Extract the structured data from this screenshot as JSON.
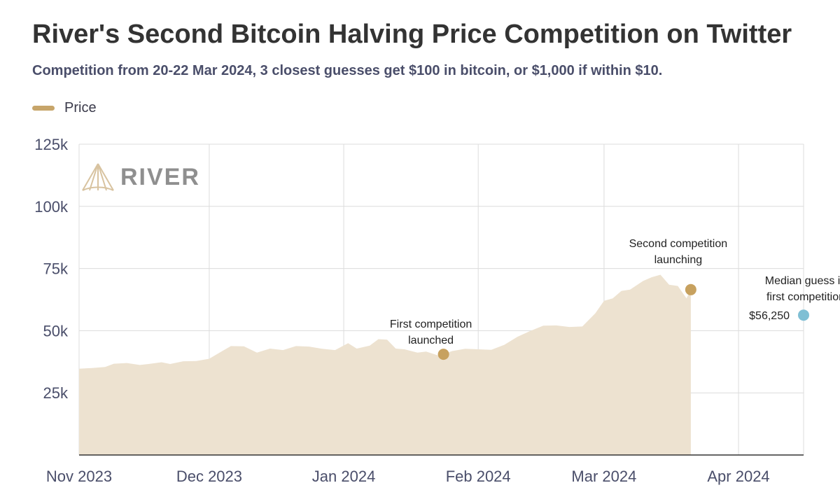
{
  "header": {
    "title": "River's Second Bitcoin Halving Price Competition on Twitter",
    "subtitle": "Competition from 20-22 Mar 2024, 3 closest guesses get $100 in bitcoin, or $1,000 if within $10."
  },
  "logo": {
    "text": "RIVER",
    "icon": "river-mountain-logo-icon"
  },
  "colors": {
    "price_fill": "#ede2d0",
    "price_line": "#c7a56a",
    "marker": "#c7a15f",
    "median_marker": "#7fbfd4",
    "grid": "#dcdcdc",
    "axis": "#333333"
  },
  "chart_data": {
    "type": "area",
    "title": "River's Second Bitcoin Halving Price Competition on Twitter",
    "subtitle": "Competition from 20-22 Mar 2024, 3 closest guesses get $100 in bitcoin, or $1,000 if within $10.",
    "xlabel": "",
    "ylabel": "",
    "xlim": [
      "2023-11-01",
      "2024-04-16"
    ],
    "ylim": [
      0,
      125000
    ],
    "x_ticks": [
      "2023-11-01",
      "2023-12-01",
      "2024-01-01",
      "2024-02-01",
      "2024-03-01",
      "2024-04-01"
    ],
    "x_tick_labels": [
      "Nov 2023",
      "Dec 2023",
      "Jan 2024",
      "Feb 2024",
      "Mar 2024",
      "Apr 2024"
    ],
    "y_ticks": [
      25000,
      50000,
      75000,
      100000,
      125000
    ],
    "y_tick_labels": [
      "25k",
      "50k",
      "75k",
      "100k",
      "125k"
    ],
    "grid": true,
    "legend_position": "top-left",
    "series": [
      {
        "name": "Price",
        "x": [
          "2023-11-01",
          "2023-11-04",
          "2023-11-07",
          "2023-11-09",
          "2023-11-12",
          "2023-11-15",
          "2023-11-17",
          "2023-11-20",
          "2023-11-22",
          "2023-11-25",
          "2023-11-28",
          "2023-12-01",
          "2023-12-04",
          "2023-12-06",
          "2023-12-09",
          "2023-12-12",
          "2023-12-15",
          "2023-12-18",
          "2023-12-21",
          "2023-12-24",
          "2023-12-27",
          "2023-12-30",
          "2024-01-02",
          "2024-01-04",
          "2024-01-07",
          "2024-01-09",
          "2024-01-11",
          "2024-01-13",
          "2024-01-15",
          "2024-01-18",
          "2024-01-20",
          "2024-01-23",
          "2024-01-26",
          "2024-01-29",
          "2024-02-01",
          "2024-02-04",
          "2024-02-07",
          "2024-02-10",
          "2024-02-13",
          "2024-02-16",
          "2024-02-19",
          "2024-02-22",
          "2024-02-25",
          "2024-02-28",
          "2024-03-01",
          "2024-03-03",
          "2024-03-05",
          "2024-03-07",
          "2024-03-10",
          "2024-03-12",
          "2024-03-14",
          "2024-03-16",
          "2024-03-18",
          "2024-03-20",
          "2024-03-21"
        ],
        "values": [
          34700,
          35000,
          35400,
          36700,
          37000,
          36200,
          36600,
          37300,
          36600,
          37700,
          37800,
          38700,
          41800,
          43800,
          43700,
          41200,
          42800,
          42200,
          43800,
          43600,
          42700,
          42200,
          45000,
          42800,
          44000,
          46600,
          46400,
          42800,
          42500,
          41200,
          41600,
          39900,
          41800,
          42700,
          42500,
          42300,
          44300,
          47500,
          49900,
          52000,
          52100,
          51500,
          51700,
          57000,
          62000,
          63000,
          66000,
          66500,
          70000,
          71500,
          72500,
          68500,
          68000,
          63000,
          66500
        ]
      }
    ],
    "annotations": [
      {
        "text": "First competition launched",
        "lines": [
          "First competition",
          "launched"
        ],
        "x": "2024-01-24",
        "y": 40500
      },
      {
        "text": "Second competition launching",
        "lines": [
          "Second competition",
          "launching"
        ],
        "x": "2024-03-21",
        "y": 66500
      },
      {
        "text": "Median guess in first competition",
        "lines": [
          "Median guess in",
          "first competition"
        ],
        "value_label": "$56,250",
        "x": "2024-04-16",
        "y": 56250
      }
    ]
  }
}
